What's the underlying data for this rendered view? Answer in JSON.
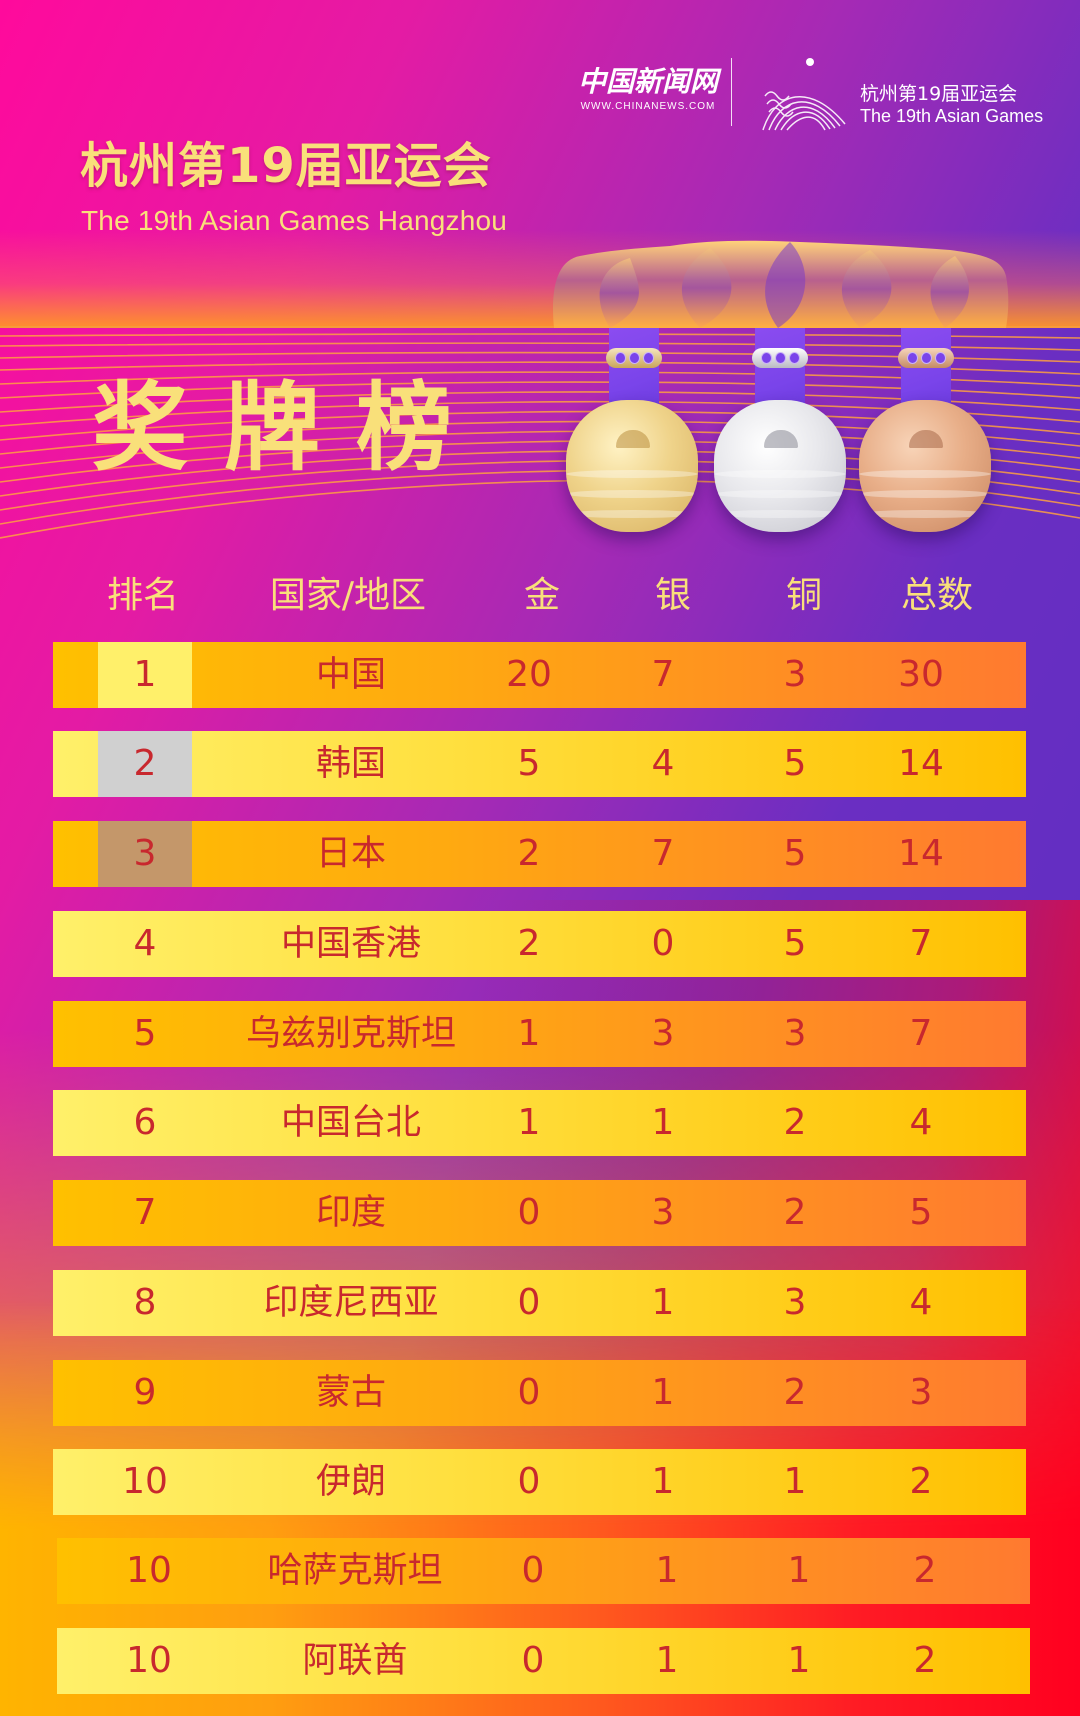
{
  "header": {
    "title_cn": "杭州第19届亚运会",
    "title_en": "The 19th Asian Games Hangzhou",
    "big_title": "奖牌榜"
  },
  "branding": {
    "news_name": "中国新闻网",
    "news_url": "WWW.CHINANEWS.COM",
    "games_name_cn": "杭州第19届亚运会",
    "games_name_en": "The 19th Asian Games"
  },
  "medals_icons": [
    "gold-medal-icon",
    "silver-medal-icon",
    "bronze-medal-icon"
  ],
  "colors": {
    "title_yellow": "#F9E07A",
    "row_text": "#C8282E",
    "rank_gold": "#FFF06A",
    "rank_silver": "#D0D0D0",
    "rank_bronze": "#C4976A"
  },
  "table": {
    "columns": [
      "排名",
      "国家/地区",
      "金",
      "银",
      "铜",
      "总数"
    ],
    "rows": [
      {
        "rank": "1",
        "country": "中国",
        "gold": "20",
        "silver": "7",
        "bronze": "3",
        "total": "30"
      },
      {
        "rank": "2",
        "country": "韩国",
        "gold": "5",
        "silver": "4",
        "bronze": "5",
        "total": "14"
      },
      {
        "rank": "3",
        "country": "日本",
        "gold": "2",
        "silver": "7",
        "bronze": "5",
        "total": "14"
      },
      {
        "rank": "4",
        "country": "中国香港",
        "gold": "2",
        "silver": "0",
        "bronze": "5",
        "total": "7"
      },
      {
        "rank": "5",
        "country": "乌兹别克斯坦",
        "gold": "1",
        "silver": "3",
        "bronze": "3",
        "total": "7"
      },
      {
        "rank": "6",
        "country": "中国台北",
        "gold": "1",
        "silver": "1",
        "bronze": "2",
        "total": "4"
      },
      {
        "rank": "7",
        "country": "印度",
        "gold": "0",
        "silver": "3",
        "bronze": "2",
        "total": "5"
      },
      {
        "rank": "8",
        "country": "印度尼西亚",
        "gold": "0",
        "silver": "1",
        "bronze": "3",
        "total": "4"
      },
      {
        "rank": "9",
        "country": "蒙古",
        "gold": "0",
        "silver": "1",
        "bronze": "2",
        "total": "3"
      },
      {
        "rank": "10",
        "country": "伊朗",
        "gold": "0",
        "silver": "1",
        "bronze": "1",
        "total": "2"
      },
      {
        "rank": "10",
        "country": "哈萨克斯坦",
        "gold": "0",
        "silver": "1",
        "bronze": "1",
        "total": "2"
      },
      {
        "rank": "10",
        "country": "阿联酋",
        "gold": "0",
        "silver": "1",
        "bronze": "1",
        "total": "2"
      }
    ]
  }
}
